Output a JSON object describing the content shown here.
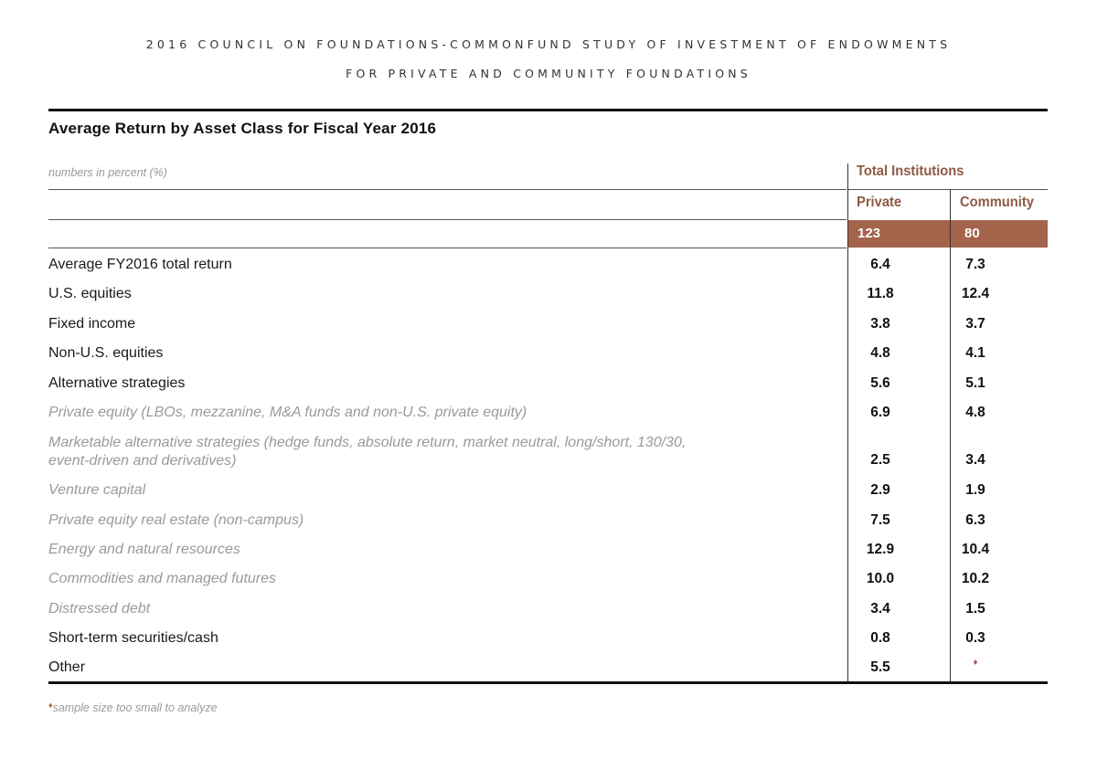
{
  "header": {
    "line1": "2016 COUNCIL ON FOUNDATIONS-COMMONFUND STUDY OF INVESTMENT OF ENDOWMENTS",
    "line2": "FOR PRIVATE AND COMMUNITY FOUNDATIONS"
  },
  "table": {
    "title": "Average Return by Asset Class for Fiscal Year 2016",
    "units_note": "numbers in percent (%)",
    "group_header": "Total Institutions",
    "columns": [
      "Private",
      "Community"
    ],
    "counts": [
      "123",
      "80"
    ],
    "rows": [
      {
        "label": "Average FY2016 total return",
        "sub": false,
        "private": "6.4",
        "community": "7.3"
      },
      {
        "label": "U.S. equities",
        "sub": false,
        "private": "11.8",
        "community": "12.4"
      },
      {
        "label": "Fixed income",
        "sub": false,
        "private": "3.8",
        "community": "3.7"
      },
      {
        "label": "Non-U.S. equities",
        "sub": false,
        "private": "4.8",
        "community": "4.1"
      },
      {
        "label": "Alternative strategies",
        "sub": false,
        "private": "5.6",
        "community": "5.1"
      },
      {
        "label": "Private equity (LBOs, mezzanine, M&A funds and non-U.S. private equity)",
        "sub": true,
        "private": "6.9",
        "community": "4.8"
      },
      {
        "label": "Marketable alternative strategies (hedge funds, absolute return, market neutral, long/short, 130/30,",
        "label2": "event-driven and derivatives)",
        "sub": true,
        "private": "2.5",
        "community": "3.4"
      },
      {
        "label": "Venture capital",
        "sub": true,
        "private": "2.9",
        "community": "1.9"
      },
      {
        "label": "Private equity real estate (non-campus)",
        "sub": true,
        "private": "7.5",
        "community": "6.3"
      },
      {
        "label": "Energy and natural resources",
        "sub": true,
        "private": "12.9",
        "community": "10.4"
      },
      {
        "label": "Commodities and managed futures",
        "sub": true,
        "private": "10.0",
        "community": "10.2"
      },
      {
        "label": "Distressed debt",
        "sub": true,
        "private": "3.4",
        "community": "1.5"
      },
      {
        "label": "Short-term securities/cash",
        "sub": false,
        "private": "0.8",
        "community": "0.3"
      },
      {
        "label": "Other",
        "sub": false,
        "private": "5.5",
        "community": "♦"
      }
    ]
  },
  "footnote": {
    "mark": "♦",
    "text": "sample size too small to analyze"
  },
  "colors": {
    "accent": "#a4634b",
    "accent_text": "#8e5a44",
    "subrow_text": "#9a9a9a"
  }
}
